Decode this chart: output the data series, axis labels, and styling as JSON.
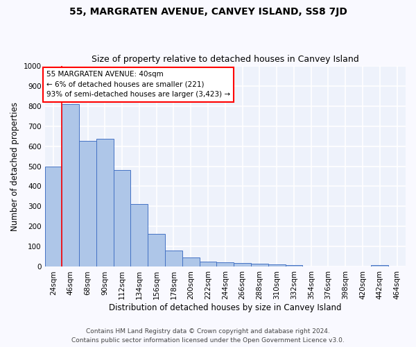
{
  "title": "55, MARGRATEN AVENUE, CANVEY ISLAND, SS8 7JD",
  "subtitle": "Size of property relative to detached houses in Canvey Island",
  "xlabel": "Distribution of detached houses by size in Canvey Island",
  "ylabel": "Number of detached properties",
  "categories": [
    "24sqm",
    "46sqm",
    "68sqm",
    "90sqm",
    "112sqm",
    "134sqm",
    "156sqm",
    "178sqm",
    "200sqm",
    "222sqm",
    "244sqm",
    "266sqm",
    "288sqm",
    "310sqm",
    "332sqm",
    "354sqm",
    "376sqm",
    "398sqm",
    "420sqm",
    "442sqm",
    "464sqm"
  ],
  "values": [
    500,
    810,
    625,
    638,
    480,
    312,
    163,
    82,
    45,
    25,
    22,
    20,
    15,
    13,
    8,
    0,
    0,
    0,
    0,
    10,
    0
  ],
  "bar_color": "#aec6e8",
  "bar_edge_color": "#4472c4",
  "annotation_text_line1": "55 MARGRATEN AVENUE: 40sqm",
  "annotation_text_line2": "← 6% of detached houses are smaller (221)",
  "annotation_text_line3": "93% of semi-detached houses are larger (3,423) →",
  "red_line_x": 0.5,
  "footer_line1": "Contains HM Land Registry data © Crown copyright and database right 2024.",
  "footer_line2": "Contains public sector information licensed under the Open Government Licence v3.0.",
  "ylim": [
    0,
    1000
  ],
  "yticks": [
    0,
    100,
    200,
    300,
    400,
    500,
    600,
    700,
    800,
    900,
    1000
  ],
  "background_color": "#eef2fb",
  "grid_color": "#ffffff",
  "fig_background": "#f9f9ff",
  "title_fontsize": 10,
  "subtitle_fontsize": 9,
  "axis_label_fontsize": 8.5,
  "tick_fontsize": 7.5,
  "footer_fontsize": 6.5,
  "annotation_fontsize": 7.5
}
